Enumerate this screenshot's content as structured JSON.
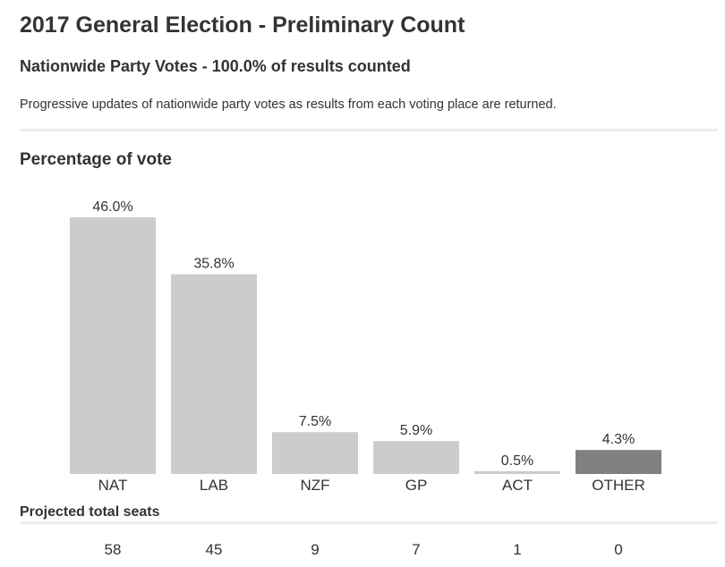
{
  "header": {
    "title": "2017 General Election - Preliminary Count",
    "subtitle": "Nationwide Party Votes - 100.0% of results counted",
    "description": "Progressive updates of nationwide party votes as results from each voting place are returned."
  },
  "chart_data": {
    "type": "bar",
    "title": "Percentage of vote",
    "categories": [
      "NAT",
      "LAB",
      "NZF",
      "GP",
      "ACT",
      "OTHER"
    ],
    "values": [
      46.0,
      35.8,
      7.5,
      5.9,
      0.5,
      4.3
    ],
    "data_labels": [
      "46.0%",
      "35.8%",
      "7.5%",
      "5.9%",
      "0.5%",
      "4.3%"
    ],
    "xlabel": "",
    "ylabel": "",
    "ylim": [
      0,
      46
    ],
    "grid": false,
    "legend": "none",
    "colors": {
      "bar": "#cccccc",
      "other_bar": "#808080",
      "text": "#333333"
    }
  },
  "seats": {
    "title": "Projected total seats",
    "values": [
      "58",
      "45",
      "9",
      "7",
      "1",
      "0"
    ]
  }
}
